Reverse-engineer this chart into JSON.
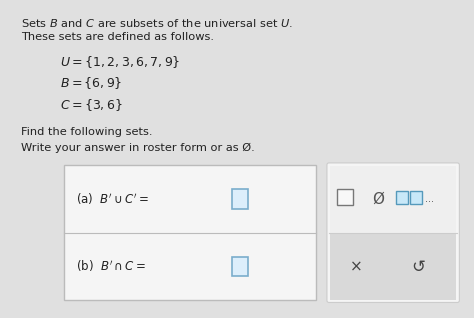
{
  "bg_color": "#e0e0e0",
  "title_line1": "Sets $\\mathit{B}$ and $\\mathit{C}$ are subsets of the universal set $\\mathit{U}$.",
  "title_line2": "These sets are defined as follows.",
  "set_U": "$U=\\{1, 2, 3, 6, 7, 9\\}$",
  "set_B": "$B=\\{6, 9\\}$",
  "set_C": "$C=\\{3, 6\\}$",
  "find_line1": "Find the following sets.",
  "find_line2": "Write your answer in roster form or as Ø.",
  "part_a_label": "(a)  $B'\\cup C' =$",
  "part_b_label": "(b)  $B'\\cap C =$",
  "box_facecolor": "#f5f5f5",
  "box_edgecolor": "#bbbbbb",
  "answer_box_color": "#dceefb",
  "answer_box_edge": "#7aadcc",
  "right_bg": "#e8e8e8",
  "right_bottom_bg": "#d8d8d8",
  "symbol_empty_set": "Ø",
  "symbol_x": "×",
  "symbol_undo": "↺"
}
